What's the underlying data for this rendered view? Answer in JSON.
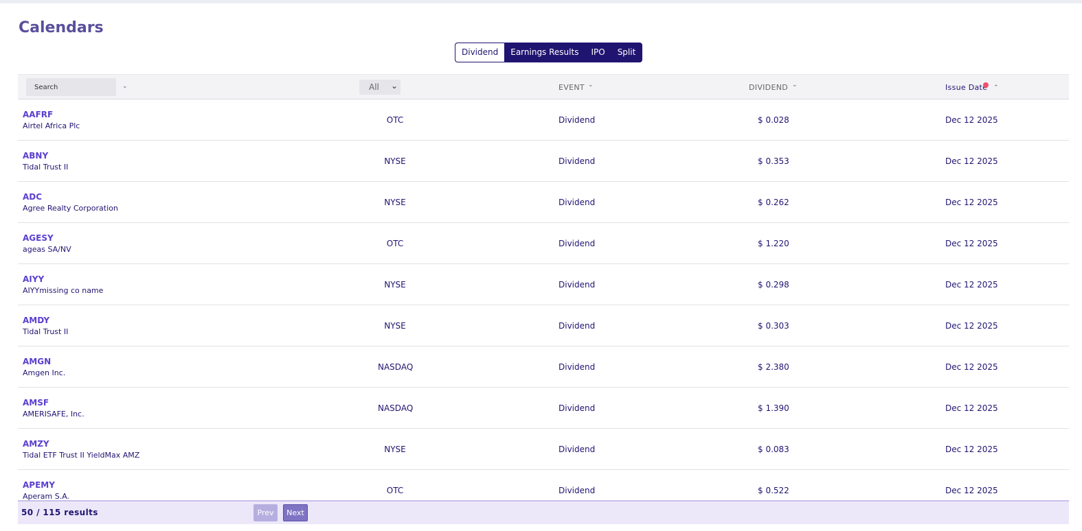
{
  "page": {
    "title": "Calendars"
  },
  "tabs": [
    "Dividend",
    "Earnings Results",
    "IPO",
    "Split"
  ],
  "header": {
    "search_placeholder": "Search",
    "exchange_filter": "All",
    "event": "EVENT",
    "dividend": "DIVIDEND",
    "issue_date": "Issue Date"
  },
  "rows": [
    {
      "symbol": "AAFRF",
      "name": "Airtel Africa Plc",
      "exchange": "OTC",
      "event": "Dividend",
      "dividend": "$ 0.028",
      "date": "Dec 12 2025"
    },
    {
      "symbol": "ABNY",
      "name": "Tidal Trust II",
      "exchange": "NYSE",
      "event": "Dividend",
      "dividend": "$ 0.353",
      "date": "Dec 12 2025"
    },
    {
      "symbol": "ADC",
      "name": "Agree Realty Corporation",
      "exchange": "NYSE",
      "event": "Dividend",
      "dividend": "$ 0.262",
      "date": "Dec 12 2025"
    },
    {
      "symbol": "AGESY",
      "name": "ageas SA/NV",
      "exchange": "OTC",
      "event": "Dividend",
      "dividend": "$ 1.220",
      "date": "Dec 12 2025"
    },
    {
      "symbol": "AIYY",
      "name": "AIYYmissing co name",
      "exchange": "NYSE",
      "event": "Dividend",
      "dividend": "$ 0.298",
      "date": "Dec 12 2025"
    },
    {
      "symbol": "AMDY",
      "name": "Tidal Trust II",
      "exchange": "NYSE",
      "event": "Dividend",
      "dividend": "$ 0.303",
      "date": "Dec 12 2025"
    },
    {
      "symbol": "AMGN",
      "name": "Amgen Inc.",
      "exchange": "NASDAQ",
      "event": "Dividend",
      "dividend": "$ 2.380",
      "date": "Dec 12 2025"
    },
    {
      "symbol": "AMSF",
      "name": "AMERISAFE, Inc.",
      "exchange": "NASDAQ",
      "event": "Dividend",
      "dividend": "$ 1.390",
      "date": "Dec 12 2025"
    },
    {
      "symbol": "AMZY",
      "name": "Tidal ETF Trust II YieldMax AMZ",
      "exchange": "NYSE",
      "event": "Dividend",
      "dividend": "$ 0.083",
      "date": "Dec 12 2025"
    },
    {
      "symbol": "APEMY",
      "name": "Aperam S.A.",
      "exchange": "OTC",
      "event": "Dividend",
      "dividend": "$ 0.522",
      "date": "Dec 12 2025"
    }
  ],
  "footer": {
    "results": "50 / 115 results",
    "prev": "Prev",
    "next": "Next"
  },
  "colors": {
    "primary": "#1f1470",
    "accent": "#5b3fd0",
    "sort_indicator": "#f0506e"
  },
  "icons": {
    "sort_down": "chevron-down-icon",
    "sort_up": "chevron-up-icon"
  }
}
